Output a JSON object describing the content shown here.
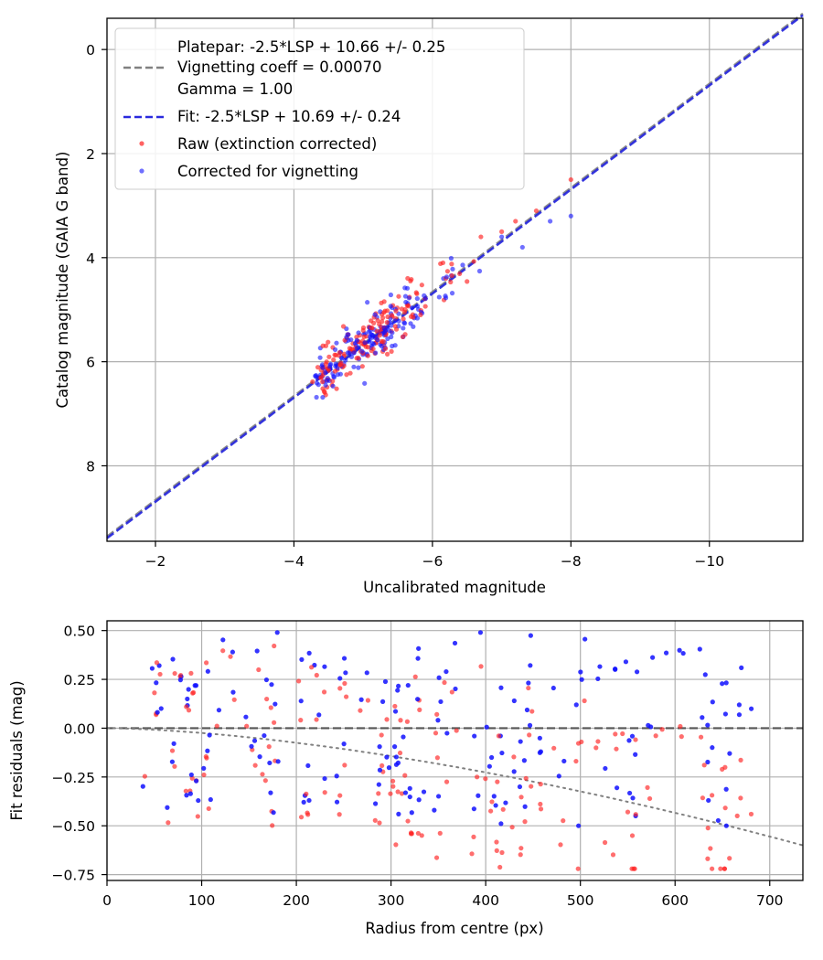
{
  "chart_data": [
    {
      "type": "scatter",
      "xlabel": "Uncalibrated magnitude",
      "ylabel": "Catalog magnitude (GAIA G band)",
      "xlim": [
        -1.3,
        -11.35
      ],
      "ylim": [
        9.45,
        -0.6
      ],
      "x_inverted": true,
      "y_inverted": true,
      "xticks": [
        -2,
        -4,
        -6,
        -8,
        -10
      ],
      "xtick_labels": [
        "−2",
        "−4",
        "−6",
        "−8",
        "−10"
      ],
      "yticks": [
        0,
        2,
        4,
        6,
        8
      ],
      "ytick_labels": [
        "0",
        "2",
        "4",
        "6",
        "8"
      ],
      "grid": true,
      "legend": {
        "placement": "upper-left",
        "entries": [
          {
            "label": "Platepar: -2.5*LSP + 10.66 +/- 0.25",
            "style": "none"
          },
          {
            "label": "Vignetting coeff = 0.00070",
            "style": "gray-dashed-line"
          },
          {
            "label": "Gamma = 1.00",
            "style": "none"
          },
          {
            "label": "Fit: -2.5*LSP + 10.69 +/- 0.24",
            "style": "blue-dashed-line"
          },
          {
            "label": "Raw (extinction corrected)",
            "style": "red-dot"
          },
          {
            "label": "Corrected for vignetting",
            "style": "blue-dot"
          }
        ]
      },
      "lines": [
        {
          "name": "Platepar: -2.5*LSP + 10.66 +/- 0.25",
          "slope": 1,
          "intercept": 10.66,
          "color": "#808080",
          "dash": "dashed"
        },
        {
          "name": "Fit: -2.5*LSP + 10.69 +/- 0.24",
          "slope": 1,
          "intercept": 10.69,
          "color": "#2222dd",
          "dash": "dashed"
        }
      ],
      "series": [
        {
          "name": "Raw (extinction corrected)",
          "color": "#ff2020",
          "n_points": 180,
          "x_range": [
            -4.35,
            -8.1
          ],
          "y_center_offset": 10.62,
          "scatter": 0.24,
          "outliers": [
            [
              -8.0,
              2.5
            ],
            [
              -7.5,
              3.1
            ],
            [
              -7.2,
              3.3
            ],
            [
              -6.7,
              3.6
            ],
            [
              -7.0,
              3.5
            ]
          ]
        },
        {
          "name": "Corrected for vignetting",
          "color": "#1010ff",
          "n_points": 180,
          "x_range": [
            -4.35,
            -8.0
          ],
          "y_center_offset": 10.69,
          "scatter": 0.22,
          "outliers": [
            [
              -8.0,
              3.2
            ],
            [
              -7.7,
              3.3
            ],
            [
              -7.0,
              3.6
            ],
            [
              -7.3,
              3.8
            ]
          ]
        }
      ]
    },
    {
      "type": "scatter",
      "xlabel": "Radius from centre (px)",
      "ylabel": "Fit residuals (mag)",
      "xlim": [
        0,
        735
      ],
      "ylim": [
        -0.78,
        0.55
      ],
      "xticks": [
        0,
        100,
        200,
        300,
        400,
        500,
        600,
        700
      ],
      "xtick_labels": [
        "0",
        "100",
        "200",
        "300",
        "400",
        "500",
        "600",
        "700"
      ],
      "yticks": [
        0.5,
        0.25,
        0.0,
        -0.25,
        -0.5,
        -0.75
      ],
      "ytick_labels": [
        "0.50",
        "0.25",
        "0.00",
        "−0.25",
        "−0.50",
        "−0.75"
      ],
      "grid": true,
      "reference_line": {
        "y": 0.0,
        "color": "#555555",
        "dash": "dashed"
      },
      "vignetting_curve": {
        "coefficient": 0.0007,
        "x_range": [
          0,
          735
        ],
        "y_start": 0.0,
        "y_end": -0.6,
        "color": "#808080",
        "dash": "dotted"
      },
      "series": [
        {
          "name": "Raw (extinction corrected)",
          "color": "#ff2020",
          "n_points": 190,
          "x_range": [
            35,
            690
          ],
          "y_range": [
            -0.72,
            0.45
          ],
          "trend": "follows vignetting curve downward"
        },
        {
          "name": "Corrected for vignetting",
          "color": "#1010ff",
          "n_points": 190,
          "x_range": [
            35,
            690
          ],
          "y_range": [
            -0.5,
            0.5
          ],
          "trend": "centered on zero"
        }
      ]
    }
  ]
}
